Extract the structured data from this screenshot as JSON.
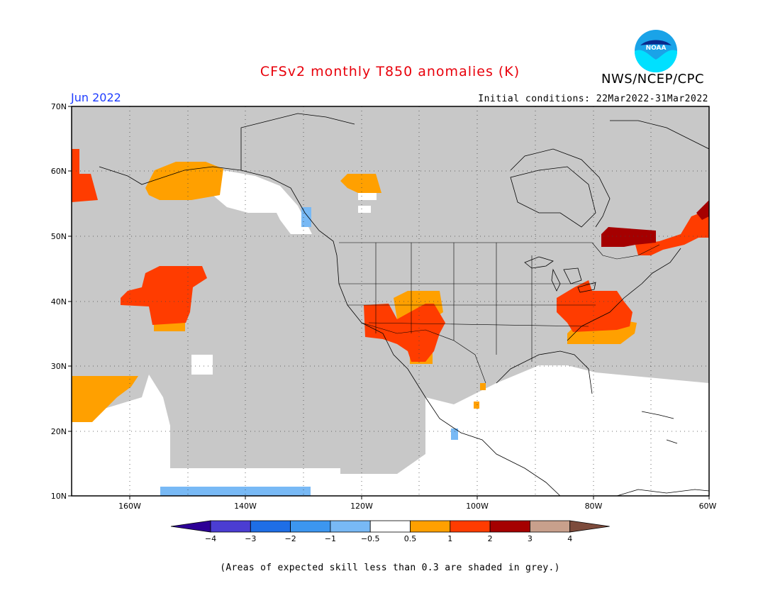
{
  "header": {
    "title": "CFSv2 monthly T850 anomalies (K)",
    "organization": "NWS/NCEP/CPC",
    "logo_text": "NOAA",
    "valid_month": "Jun 2022",
    "initial_conditions": "Initial conditions: 22Mar2022-31Mar2022"
  },
  "map": {
    "lon_range": [
      -170,
      -60
    ],
    "lat_range": [
      10,
      70
    ],
    "lat_labels": [
      "70N",
      "60N",
      "50N",
      "40N",
      "30N",
      "20N",
      "10N"
    ],
    "lon_labels": [
      "160W",
      "140W",
      "120W",
      "100W",
      "80W",
      "60W"
    ],
    "background_color": "#c8c8c8",
    "regions": [
      {
        "id": "alaska-warm",
        "level": "0.5-1"
      },
      {
        "id": "bering-warm",
        "level": "1-2"
      },
      {
        "id": "pacific-warm",
        "level": "1-2"
      },
      {
        "id": "southwest-warm",
        "level": "1-2"
      },
      {
        "id": "four-corners-warm",
        "level": "0.5-1"
      },
      {
        "id": "mid-atlantic-warm",
        "level": "1-2"
      },
      {
        "id": "carolina-warm",
        "level": "0.5-1"
      },
      {
        "id": "quebec-hot",
        "level": "2-3"
      },
      {
        "id": "maritimes-warm",
        "level": "1-2"
      },
      {
        "id": "yukon-warm",
        "level": "0.5-1"
      },
      {
        "id": "hawaii-warm",
        "level": "0.5-1"
      },
      {
        "id": "bc-cool",
        "level": "-1--0.5"
      },
      {
        "id": "east-pacific-cool",
        "level": "-1--0.5"
      }
    ]
  },
  "colorbar": {
    "colors": [
      "#2d0096",
      "#4b3dd2",
      "#1e6ee6",
      "#3c96f0",
      "#78b9f5",
      "#ffffff",
      "#ffa000",
      "#ff3c00",
      "#a50000",
      "#c8a08c",
      "#7d4b3c"
    ],
    "labels": [
      "−4",
      "−3",
      "−2",
      "−1",
      "−0.5",
      "0.5",
      "1",
      "2",
      "3",
      "4"
    ]
  },
  "footer": {
    "note": "(Areas of expected skill less than 0.3 are shaded in grey.)"
  }
}
